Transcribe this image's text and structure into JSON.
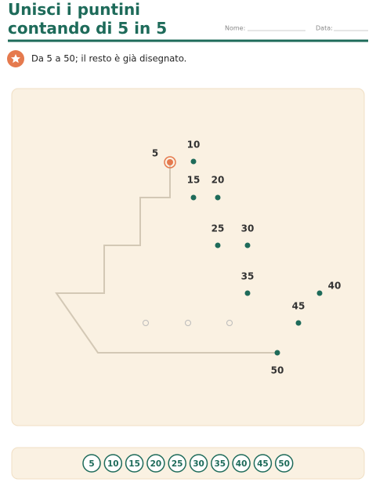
{
  "header": {
    "title": "Unisci i puntini contando di 5 in 5",
    "name_label": "Nome:",
    "date_label": "Data:"
  },
  "instruction": "Da 5 a 50; il resto è già disegnato.",
  "dots": [
    5,
    10,
    15,
    20,
    25,
    30,
    35,
    40,
    45,
    50
  ],
  "bank": [
    5,
    10,
    15,
    20,
    25,
    30,
    35,
    40,
    45,
    50
  ]
}
